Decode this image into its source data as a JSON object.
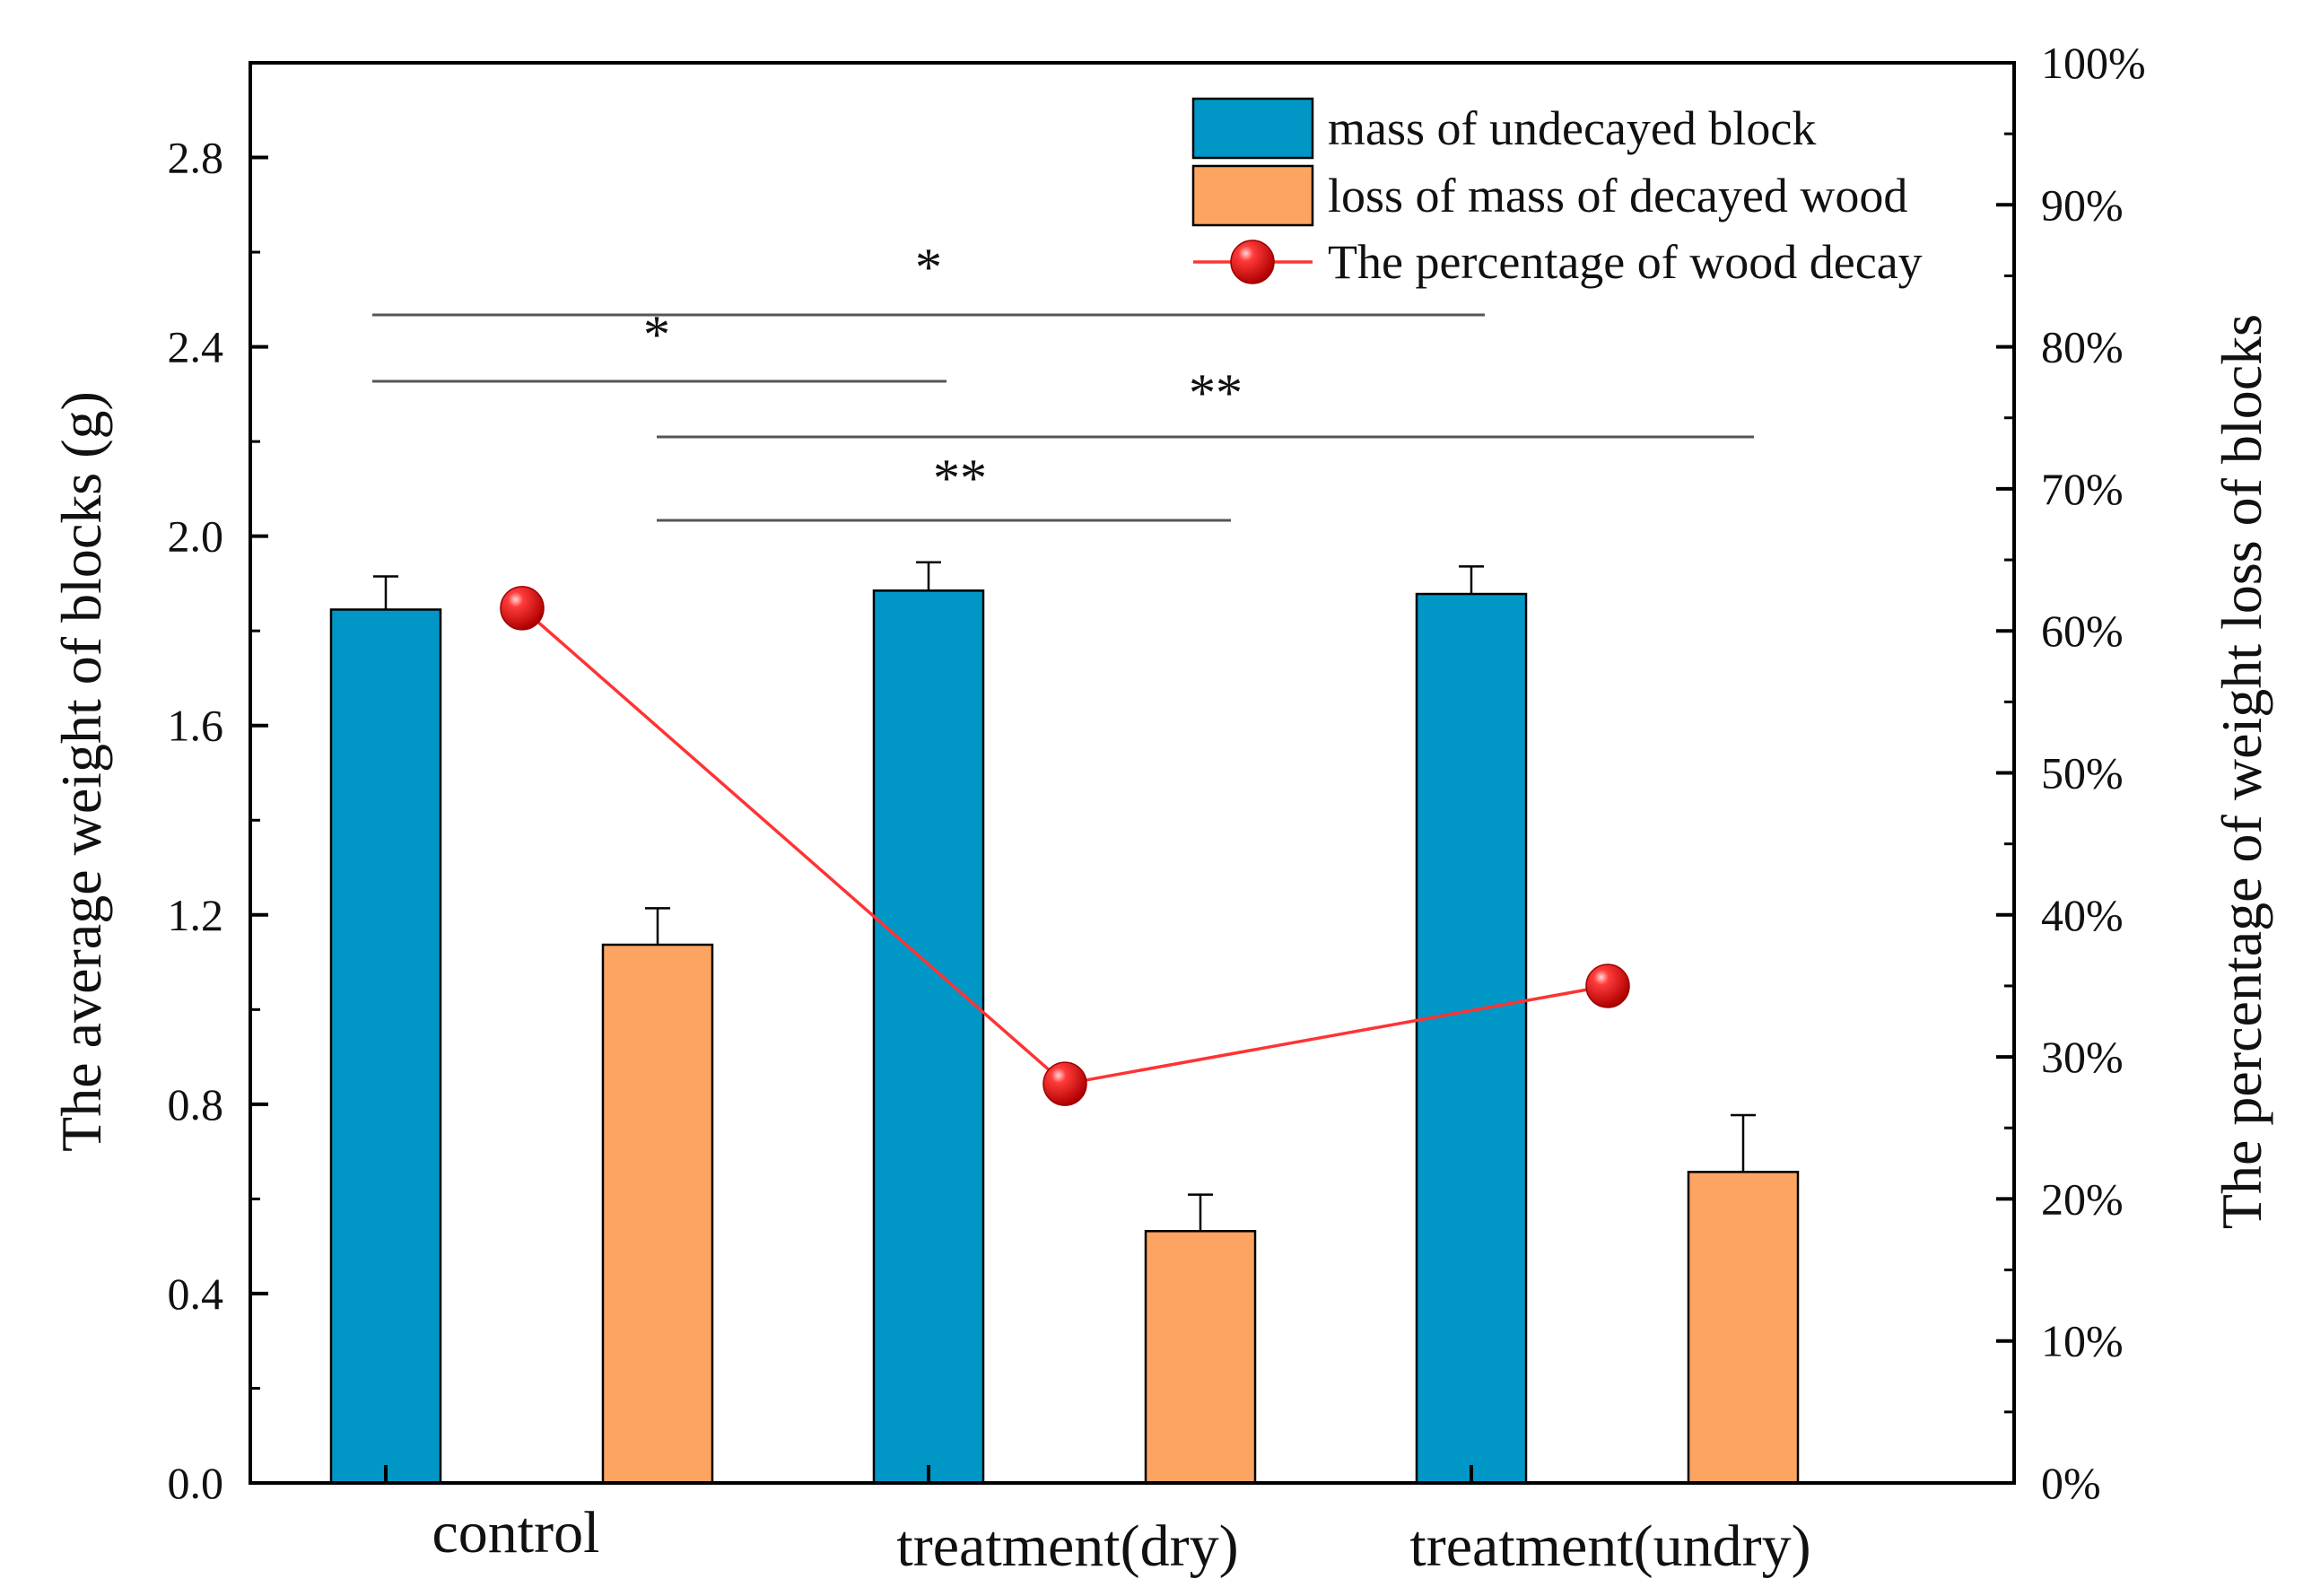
{
  "chart_data": {
    "type": "bar",
    "categories": [
      "control",
      "treatment(dry)",
      "treatment(undry)"
    ],
    "series": [
      {
        "name": "mass of undecayed block",
        "kind": "bar",
        "axis": "left",
        "color": "#0097c6",
        "values": [
          1.845,
          1.885,
          1.878
        ],
        "errors": [
          0.07,
          0.06,
          0.058
        ]
      },
      {
        "name": "loss of mass of decayed wood",
        "kind": "bar",
        "axis": "left",
        "color": "#fda462",
        "values": [
          1.137,
          0.532,
          0.657
        ],
        "errors": [
          0.077,
          0.077,
          0.12
        ]
      },
      {
        "name": "The percentage of wood decay",
        "kind": "line",
        "axis": "right",
        "color": "#ff3333",
        "marker_color": "#e10000",
        "values": [
          61.6,
          28.1,
          35.0
        ]
      }
    ],
    "ylabel": "The average weight of blocks (g)",
    "ylabel_right": "The percentage of weight loss of blocks",
    "ylim": [
      0,
      3.0
    ],
    "yticks": [
      0.0,
      0.4,
      0.8,
      1.2,
      1.6,
      2.0,
      2.4,
      2.8
    ],
    "ytick_labels": [
      "0.0",
      "0.4",
      "0.8",
      "1.2",
      "1.6",
      "2.0",
      "2.4",
      "2.8"
    ],
    "ylim_right": [
      0,
      100
    ],
    "yticks_right": [
      0,
      10,
      20,
      30,
      40,
      50,
      60,
      70,
      80,
      90,
      100
    ],
    "ytick_labels_right": [
      "0%",
      "10%",
      "20%",
      "30%",
      "40%",
      "50%",
      "60%",
      "70%",
      "80%",
      "90%",
      "100%"
    ],
    "legend_position": "top-right",
    "significance": [
      {
        "label": "*",
        "from": "control:mass",
        "to": "treatment(undry):mass",
        "y": 2.47
      },
      {
        "label": "*",
        "from": "control:mass",
        "to": "treatment(dry):mass",
        "y": 2.33
      },
      {
        "label": "**",
        "from": "control:loss",
        "to": "treatment(undry):loss",
        "y": 2.21
      },
      {
        "label": "**",
        "from": "control:loss",
        "to": "treatment(dry):loss",
        "y": 2.04
      }
    ]
  }
}
